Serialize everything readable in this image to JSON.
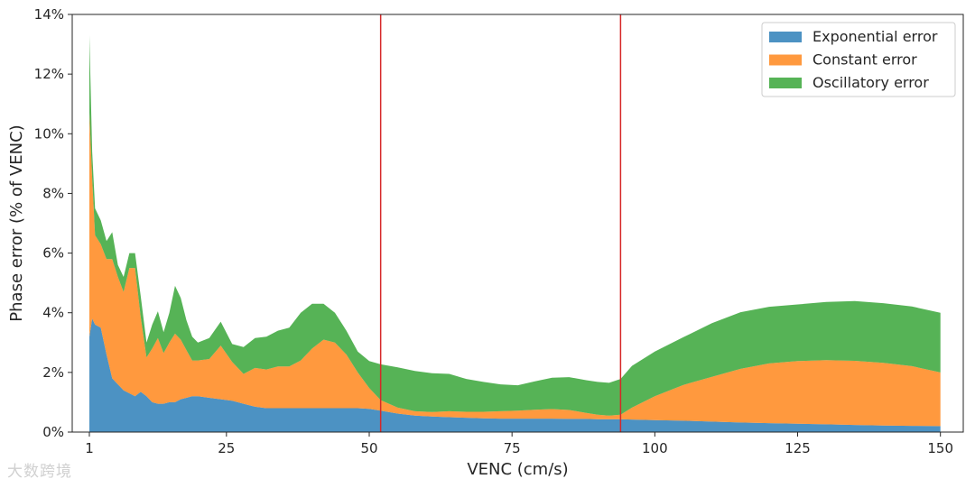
{
  "chart_data": {
    "type": "area",
    "stacked": true,
    "xlabel": "VENC (cm/s)",
    "ylabel": "Phase error (% of VENC)",
    "xlim": [
      -2,
      154
    ],
    "ylim": [
      0,
      14
    ],
    "x_ticks": [
      1,
      25,
      50,
      75,
      100,
      125,
      150
    ],
    "y_ticks": [
      0,
      2,
      4,
      6,
      8,
      10,
      12,
      14
    ],
    "y_tick_format": "percent",
    "grid": false,
    "legend_position": "top-right",
    "vertical_lines": [
      52,
      94
    ],
    "vertical_line_color": "#d62728",
    "x": [
      1,
      1.5,
      2,
      3,
      4,
      5,
      6,
      7,
      8,
      9,
      10,
      11,
      12,
      13,
      14,
      15,
      16,
      17,
      18,
      19,
      20,
      22,
      24,
      26,
      28,
      30,
      32,
      34,
      36,
      38,
      40,
      42,
      44,
      46,
      48,
      50,
      52,
      55,
      58,
      61,
      64,
      67,
      70,
      73,
      76,
      79,
      82,
      85,
      88,
      90,
      92,
      94,
      96,
      100,
      105,
      110,
      115,
      120,
      125,
      130,
      135,
      140,
      145,
      150
    ],
    "series": [
      {
        "name": "Exponential error",
        "color": "#1f77b4",
        "values": [
          3.2,
          3.8,
          3.6,
          3.5,
          2.6,
          1.8,
          1.6,
          1.4,
          1.3,
          1.2,
          1.35,
          1.2,
          1.0,
          0.95,
          0.95,
          1.0,
          1.0,
          1.1,
          1.15,
          1.2,
          1.2,
          1.15,
          1.1,
          1.05,
          0.95,
          0.85,
          0.8,
          0.8,
          0.8,
          0.8,
          0.8,
          0.8,
          0.8,
          0.8,
          0.8,
          0.78,
          0.72,
          0.62,
          0.55,
          0.52,
          0.5,
          0.48,
          0.46,
          0.45,
          0.45,
          0.45,
          0.45,
          0.44,
          0.44,
          0.43,
          0.43,
          0.43,
          0.42,
          0.4,
          0.38,
          0.35,
          0.32,
          0.3,
          0.28,
          0.26,
          0.24,
          0.22,
          0.21,
          0.2
        ]
      },
      {
        "name": "Constant error",
        "color": "#ff7f0e",
        "values": [
          7.5,
          4.7,
          3.0,
          2.8,
          3.2,
          4.0,
          3.6,
          3.3,
          4.2,
          4.3,
          2.5,
          1.3,
          1.8,
          2.2,
          1.7,
          2.0,
          2.3,
          2.0,
          1.6,
          1.2,
          1.2,
          1.3,
          1.8,
          1.3,
          1.0,
          1.3,
          1.3,
          1.4,
          1.4,
          1.6,
          2.0,
          2.3,
          2.2,
          1.8,
          1.2,
          0.7,
          0.35,
          0.2,
          0.15,
          0.15,
          0.2,
          0.2,
          0.22,
          0.25,
          0.27,
          0.3,
          0.32,
          0.3,
          0.2,
          0.15,
          0.12,
          0.15,
          0.4,
          0.8,
          1.2,
          1.5,
          1.8,
          2.0,
          2.1,
          2.15,
          2.15,
          2.1,
          2.0,
          1.8
        ]
      },
      {
        "name": "Oscillatory error",
        "color": "#2ca02c",
        "values": [
          2.6,
          0.9,
          0.9,
          0.8,
          0.6,
          0.9,
          0.4,
          0.5,
          0.5,
          0.5,
          0.7,
          0.5,
          0.8,
          0.9,
          0.7,
          1.0,
          1.6,
          1.4,
          1.0,
          0.8,
          0.6,
          0.7,
          0.8,
          0.6,
          0.9,
          1.0,
          1.1,
          1.2,
          1.3,
          1.6,
          1.5,
          1.2,
          1.0,
          0.8,
          0.7,
          0.9,
          1.2,
          1.35,
          1.35,
          1.3,
          1.25,
          1.1,
          1.0,
          0.9,
          0.85,
          0.95,
          1.05,
          1.1,
          1.1,
          1.1,
          1.1,
          1.2,
          1.4,
          1.5,
          1.6,
          1.8,
          1.9,
          1.9,
          1.9,
          1.95,
          2.0,
          2.0,
          2.0,
          2.0
        ]
      }
    ]
  },
  "watermark": "大数跨境"
}
